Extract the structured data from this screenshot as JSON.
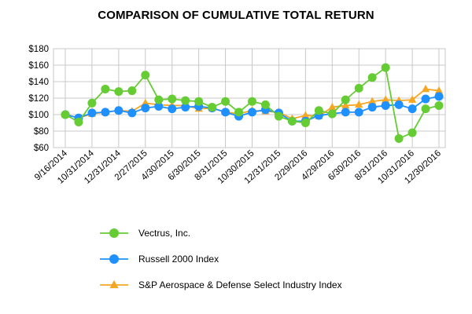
{
  "chart_data": {
    "type": "line",
    "title": "COMPARISON OF CUMULATIVE TOTAL RETURN",
    "xlabel": "",
    "ylabel": "",
    "ylim": [
      60,
      180
    ],
    "yticks": [
      "$60",
      "$80",
      "$100",
      "$120",
      "$140",
      "$160",
      "$180"
    ],
    "grid": true,
    "legend_position": "bottom",
    "x_tick_labels": [
      "9/16/2014",
      "10/31/2014",
      "12/31/2014",
      "2/27/2015",
      "4/30/2015",
      "6/30/2015",
      "8/31/2015",
      "10/30/2015",
      "12/31/2015",
      "2/29/2016",
      "4/29/2016",
      "6/30/2016",
      "8/31/2016",
      "10/31/2016",
      "12/30/2016"
    ],
    "series": [
      {
        "name": "S&P Aerospace & Defense Select Industry Index",
        "color": "#f5a623",
        "marker": "triangle",
        "values": [
          100,
          96,
          101,
          103,
          105,
          104,
          114,
          112,
          111,
          111,
          107,
          108,
          103,
          101,
          105,
          104,
          103,
          95,
          99,
          98,
          109,
          111,
          112,
          116,
          118,
          117,
          118,
          131,
          129
        ]
      },
      {
        "name": "Russell 2000 Index",
        "color": "#1e90ff",
        "marker": "circle",
        "values": [
          100,
          96,
          102,
          103,
          105,
          102,
          108,
          110,
          107,
          109,
          110,
          108,
          103,
          98,
          103,
          106,
          102,
          92,
          92,
          99,
          101,
          103,
          103,
          109,
          111,
          112,
          107,
          119,
          122
        ]
      },
      {
        "name": "Vectrus, Inc.",
        "color": "#66cc33",
        "marker": "circle",
        "values": [
          100,
          91,
          114,
          131,
          128,
          129,
          148,
          118,
          119,
          117,
          116,
          109,
          116,
          103,
          116,
          112,
          98,
          92,
          90,
          105,
          101,
          118,
          132,
          145,
          157,
          71,
          78,
          107,
          111
        ]
      }
    ]
  }
}
